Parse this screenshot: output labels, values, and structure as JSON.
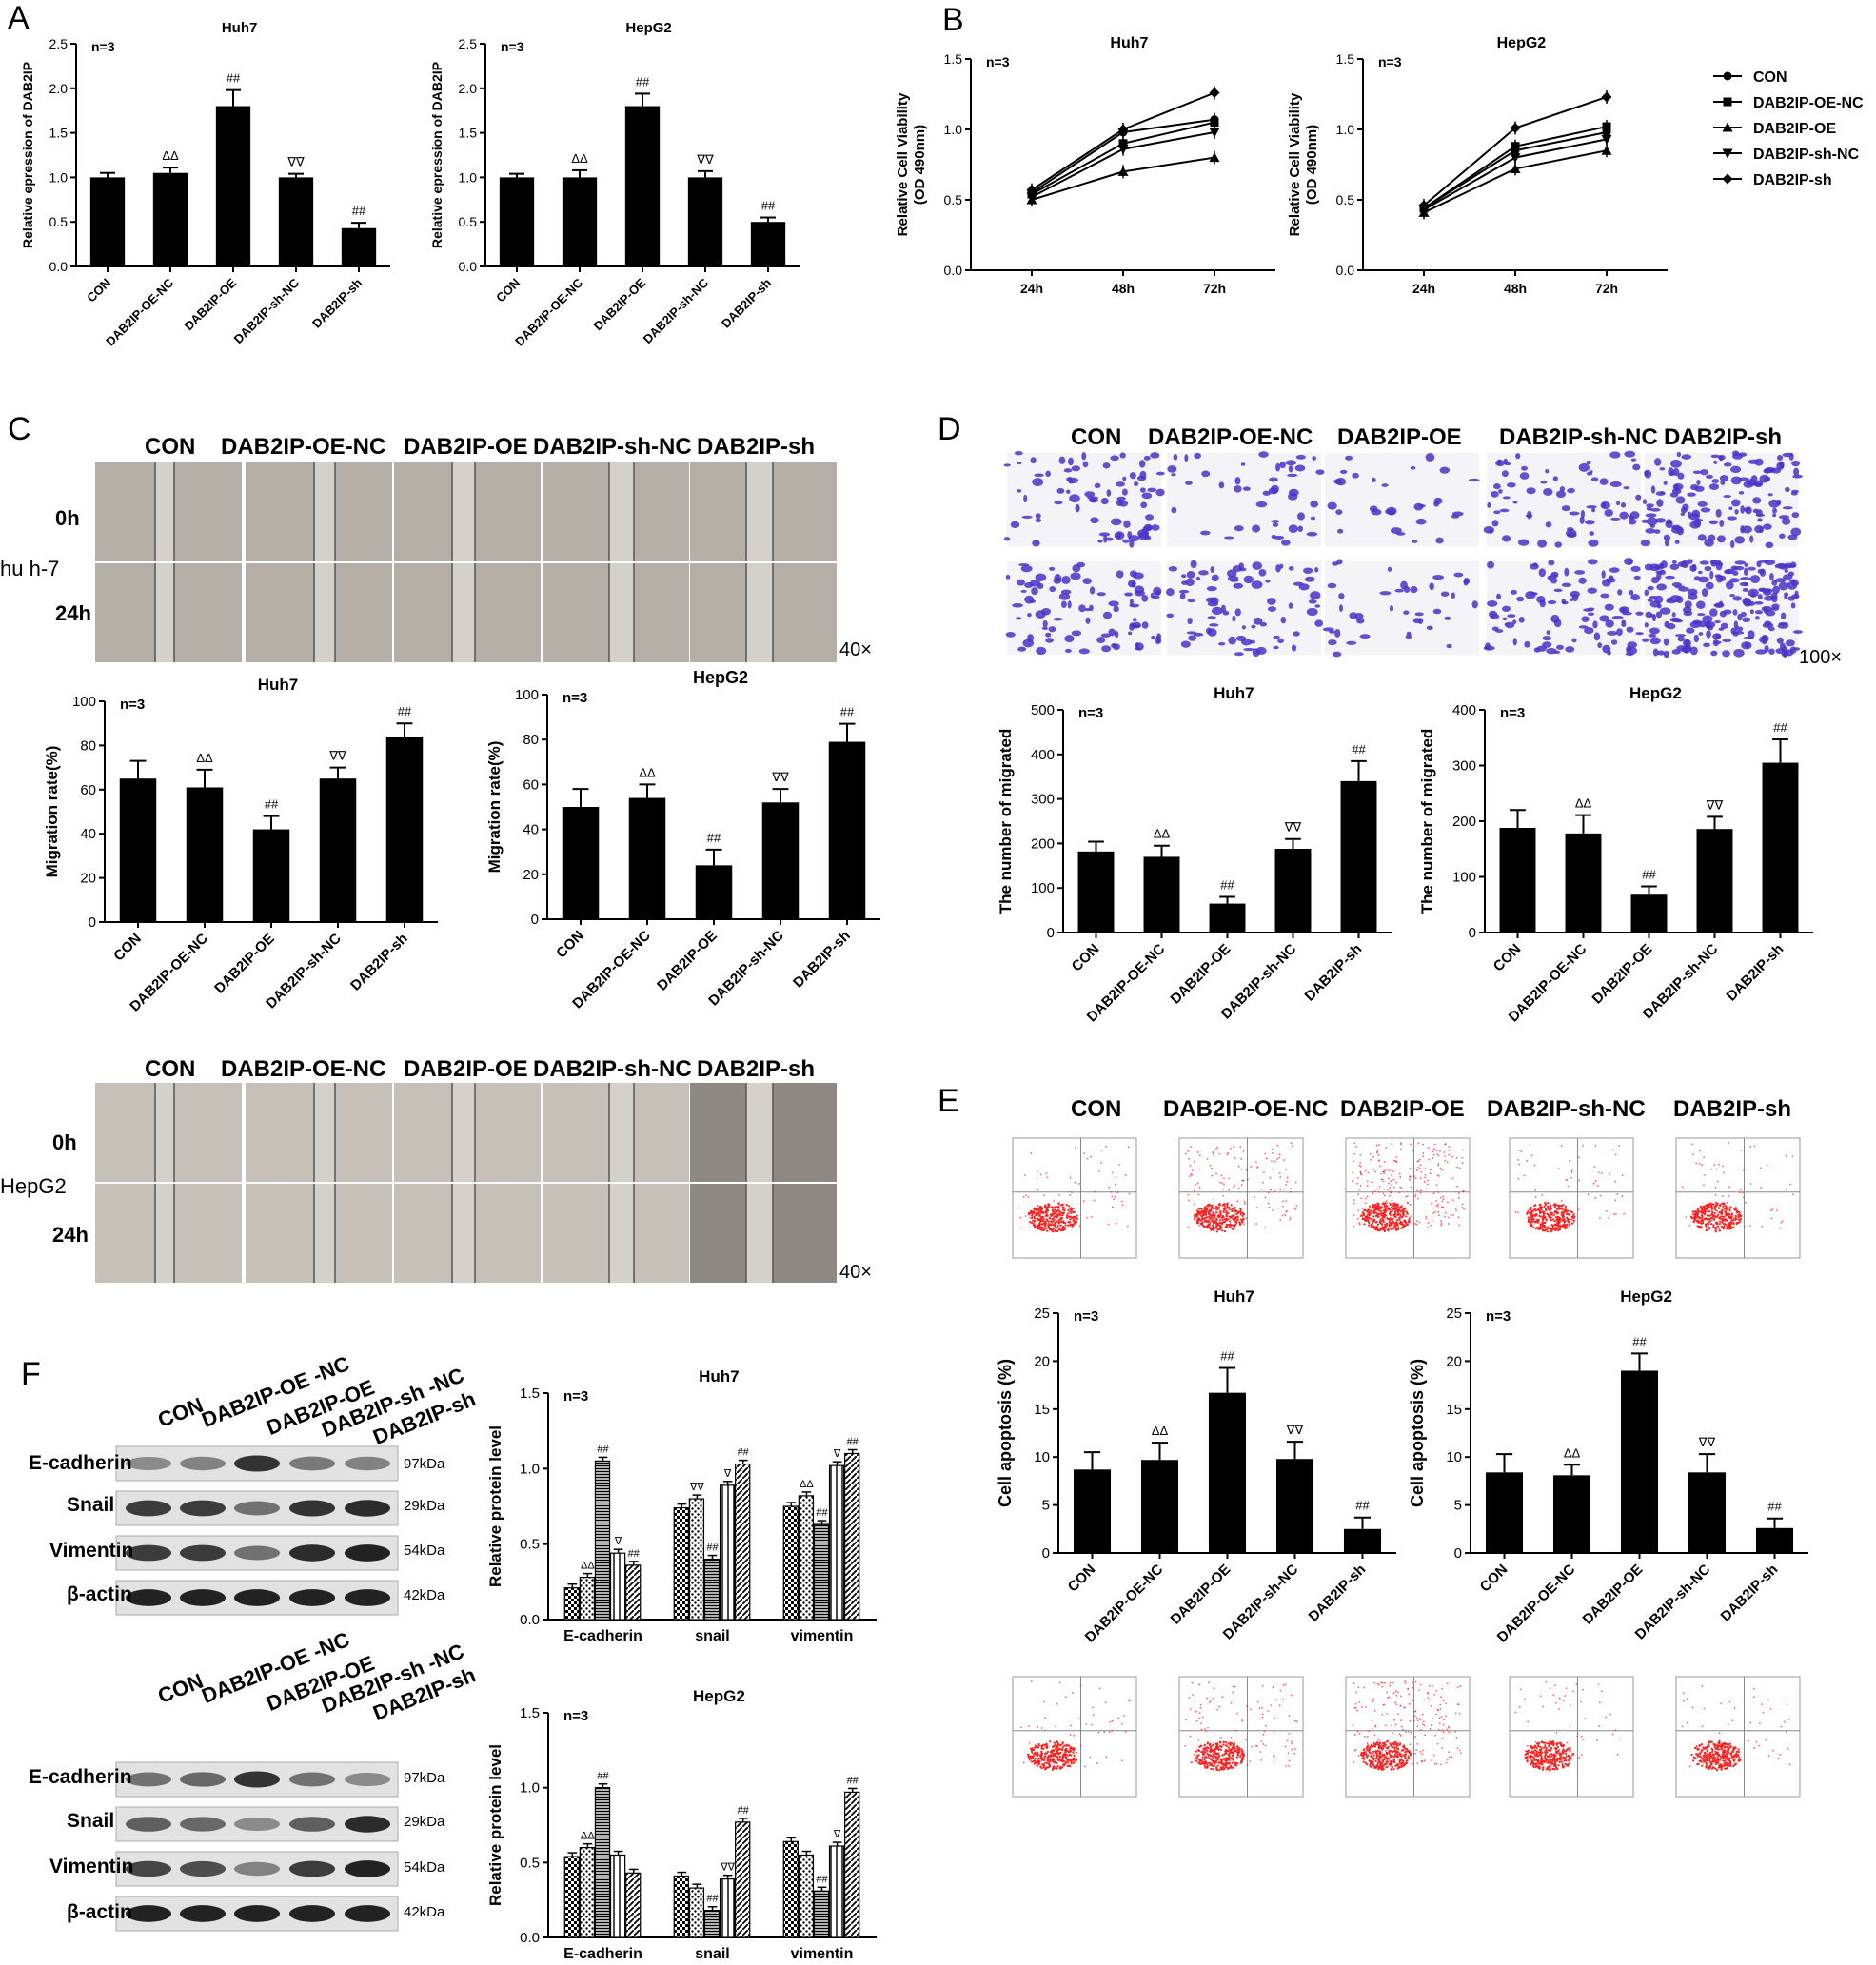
{
  "panels": {
    "A": "A",
    "B": "B",
    "C": "C",
    "D": "D",
    "E": "E",
    "F": "F"
  },
  "groups": [
    "CON",
    "DAB2IP-OE-NC",
    "DAB2IP-OE",
    "DAB2IP-sh-NC",
    "DAB2IP-sh"
  ],
  "groups_wb": [
    "CON",
    "DAB2IP-OE -NC",
    "DAB2IP-OE",
    "DAB2IP-sh -NC",
    "DAB2IP-sh"
  ],
  "panel_C": {
    "row_0h": "0h",
    "row_24h": "24h",
    "cell_huh7": "hu h-7",
    "cell_hepg2": "HepG2",
    "magnification": "40×"
  },
  "panel_D": {
    "magnification": "100×"
  },
  "panel_F": {
    "proteins": [
      "E-cadherin",
      "Snail",
      "Vimentin",
      "β-actin"
    ],
    "sizes": [
      "97kDa",
      "29kDa",
      "54kDa",
      "42kDa"
    ]
  },
  "colors": {
    "bar": "#000000",
    "apoptosis_dots": "#ff2020",
    "crystal_violet": "#4a33c8",
    "wound_bg": "#b5aea6"
  },
  "chart_data": [
    {
      "id": "A_huh7",
      "type": "bar",
      "title": "Huh7",
      "note": "n=3",
      "ylabel": "Relative epression of DAB2IP",
      "ylim": [
        0,
        2.5
      ],
      "yticks": [
        0.0,
        0.5,
        1.0,
        1.5,
        2.0,
        2.5
      ],
      "categories": [
        "CON",
        "DAB2IP-OE-NC",
        "DAB2IP-OE",
        "DAB2IP-sh-NC",
        "DAB2IP-sh"
      ],
      "values": [
        1.0,
        1.05,
        1.8,
        1.0,
        0.43
      ],
      "errors": [
        0.05,
        0.06,
        0.18,
        0.04,
        0.06
      ],
      "annotations": [
        "",
        "ΔΔ",
        "##",
        "∇∇",
        "##"
      ]
    },
    {
      "id": "A_hepg2",
      "type": "bar",
      "title": "HepG2",
      "note": "n=3",
      "ylabel": "Relative epression of DAB2IP",
      "ylim": [
        0,
        2.5
      ],
      "yticks": [
        0.0,
        0.5,
        1.0,
        1.5,
        2.0,
        2.5
      ],
      "categories": [
        "CON",
        "DAB2IP-OE-NC",
        "DAB2IP-OE",
        "DAB2IP-sh-NC",
        "DAB2IP-sh"
      ],
      "values": [
        1.0,
        1.0,
        1.8,
        1.0,
        0.5
      ],
      "errors": [
        0.04,
        0.08,
        0.14,
        0.07,
        0.05
      ],
      "annotations": [
        "",
        "ΔΔ",
        "##",
        "∇∇",
        "##"
      ]
    },
    {
      "id": "B_huh7",
      "type": "line",
      "title": "Huh7",
      "note": "n=3",
      "ylabel": "Relative Cell Viability (OD 490nm)",
      "ylim": [
        0,
        1.5
      ],
      "yticks": [
        0.0,
        0.5,
        1.0,
        1.5
      ],
      "x": [
        "24h",
        "48h",
        "72h"
      ],
      "series": [
        {
          "name": "CON",
          "values": [
            0.55,
            0.98,
            1.07
          ]
        },
        {
          "name": "DAB2IP-OE-NC",
          "values": [
            0.54,
            0.9,
            1.05
          ]
        },
        {
          "name": "DAB2IP-OE",
          "values": [
            0.5,
            0.7,
            0.8
          ]
        },
        {
          "name": "DAB2IP-sh-NC",
          "values": [
            0.52,
            0.86,
            0.98
          ]
        },
        {
          "name": "DAB2IP-sh",
          "values": [
            0.57,
            1.0,
            1.26
          ]
        }
      ]
    },
    {
      "id": "B_hepg2",
      "type": "line",
      "title": "HepG2",
      "note": "n=3",
      "ylabel": "Relative Cell Viability (OD 490nm)",
      "ylim": [
        0,
        1.5
      ],
      "yticks": [
        0.0,
        0.5,
        1.0,
        1.5
      ],
      "x": [
        "24h",
        "48h",
        "72h"
      ],
      "series": [
        {
          "name": "CON",
          "values": [
            0.44,
            0.85,
            0.98
          ]
        },
        {
          "name": "DAB2IP-OE-NC",
          "values": [
            0.44,
            0.88,
            1.02
          ]
        },
        {
          "name": "DAB2IP-OE",
          "values": [
            0.41,
            0.72,
            0.85
          ]
        },
        {
          "name": "DAB2IP-sh-NC",
          "values": [
            0.43,
            0.8,
            0.93
          ]
        },
        {
          "name": "DAB2IP-sh",
          "values": [
            0.46,
            1.01,
            1.23
          ]
        }
      ],
      "legend": [
        "CON",
        "DAB2IP-OE-NC",
        "DAB2IP-OE",
        "DAB2IP-sh-NC",
        "DAB2IP-sh"
      ]
    },
    {
      "id": "C_huh7",
      "type": "bar",
      "title": "Huh7",
      "note": "n=3",
      "ylabel": "Migration rate(%)",
      "ylim": [
        0,
        100
      ],
      "yticks": [
        0,
        20,
        40,
        60,
        80,
        100
      ],
      "categories": [
        "CON",
        "DAB2IP-OE-NC",
        "DAB2IP-OE",
        "DAB2IP-sh-NC",
        "DAB2IP-sh"
      ],
      "values": [
        65,
        61,
        42,
        65,
        84
      ],
      "errors": [
        8,
        8,
        6,
        5,
        6
      ],
      "annotations": [
        "",
        "ΔΔ",
        "##",
        "∇∇",
        "##"
      ]
    },
    {
      "id": "C_hepg2",
      "type": "bar",
      "title": "HepG2",
      "note": "n=3",
      "ylabel": "Migration rate(%)",
      "ylim": [
        0,
        100
      ],
      "yticks": [
        0,
        20,
        40,
        60,
        80,
        100
      ],
      "categories": [
        "CON",
        "DAB2IP-OE-NC",
        "DAB2IP-OE",
        "DAB2IP-sh-NC",
        "DAB2IP-sh"
      ],
      "values": [
        50,
        54,
        24,
        52,
        79
      ],
      "errors": [
        8,
        6,
        7,
        6,
        8
      ],
      "annotations": [
        "",
        "ΔΔ",
        "##",
        "∇∇",
        "##"
      ]
    },
    {
      "id": "D_huh7",
      "type": "bar",
      "title": "Huh7",
      "note": "n=3",
      "ylabel": "The number of migrated",
      "ylim": [
        0,
        500
      ],
      "yticks": [
        0,
        100,
        200,
        300,
        400,
        500
      ],
      "categories": [
        "CON",
        "DAB2IP-OE-NC",
        "DAB2IP-OE",
        "DAB2IP-sh-NC",
        "DAB2IP-sh"
      ],
      "values": [
        182,
        170,
        65,
        188,
        340
      ],
      "errors": [
        22,
        25,
        15,
        22,
        45
      ],
      "annotations": [
        "",
        "ΔΔ",
        "##",
        "∇∇",
        "##"
      ]
    },
    {
      "id": "D_hepg2",
      "type": "bar",
      "title": "HepG2",
      "note": "n=3",
      "ylabel": "The number of migrated",
      "ylim": [
        0,
        400
      ],
      "yticks": [
        0,
        100,
        200,
        300,
        400
      ],
      "categories": [
        "CON",
        "DAB2IP-OE-NC",
        "DAB2IP-OE",
        "DAB2IP-sh-NC",
        "DAB2IP-sh"
      ],
      "values": [
        188,
        178,
        68,
        186,
        305
      ],
      "errors": [
        32,
        33,
        15,
        22,
        42
      ],
      "annotations": [
        "",
        "ΔΔ",
        "##",
        "∇∇",
        "##"
      ]
    },
    {
      "id": "E_huh7",
      "type": "bar",
      "title": "Huh7",
      "note": "n=3",
      "ylabel": "Cell apoptosis (%)",
      "ylim": [
        0,
        25
      ],
      "yticks": [
        0,
        5,
        10,
        15,
        20,
        25
      ],
      "categories": [
        "CON",
        "DAB2IP-OE-NC",
        "DAB2IP-OE",
        "DAB2IP-sh-NC",
        "DAB2IP-sh"
      ],
      "values": [
        8.7,
        9.7,
        16.7,
        9.8,
        2.5
      ],
      "errors": [
        1.8,
        1.8,
        2.6,
        1.8,
        1.2
      ],
      "annotations": [
        "",
        "ΔΔ",
        "##",
        "∇∇",
        "##"
      ]
    },
    {
      "id": "E_hepg2",
      "type": "bar",
      "title": "HepG2",
      "note": "n=3",
      "ylabel": "Cell apoptosis (%)",
      "ylim": [
        0,
        25
      ],
      "yticks": [
        0,
        5,
        10,
        15,
        20,
        25
      ],
      "categories": [
        "CON",
        "DAB2IP-OE-NC",
        "DAB2IP-OE",
        "DAB2IP-sh-NC",
        "DAB2IP-sh"
      ],
      "values": [
        8.4,
        8.1,
        19,
        8.4,
        2.6
      ],
      "errors": [
        1.9,
        1.1,
        1.8,
        1.9,
        1.0
      ],
      "annotations": [
        "",
        "ΔΔ",
        "##",
        "∇∇",
        "##"
      ]
    },
    {
      "id": "F_huh7",
      "type": "bar",
      "title": "Huh7",
      "note": "n=3",
      "ylabel": "Relative protein level",
      "ylim": [
        0,
        1.5
      ],
      "yticks": [
        0.0,
        0.5,
        1.0,
        1.5
      ],
      "categories": [
        "E-cadherin",
        "snail",
        "vimentin"
      ],
      "series": [
        {
          "values": [
            0.21,
            0.74,
            0.75
          ]
        },
        {
          "values": [
            0.28,
            0.8,
            0.82
          ]
        },
        {
          "values": [
            1.05,
            0.4,
            0.63
          ]
        },
        {
          "values": [
            0.44,
            0.89,
            1.02
          ]
        },
        {
          "values": [
            0.36,
            1.03,
            1.1
          ]
        }
      ],
      "annotations": [
        [
          "",
          "ΔΔ",
          "##",
          "∇",
          "##"
        ],
        [
          "",
          "∇∇",
          "##",
          "∇",
          "##"
        ],
        [
          "",
          "ΔΔ",
          "##",
          "∇",
          "##"
        ]
      ]
    },
    {
      "id": "F_hepg2",
      "type": "bar",
      "title": "HepG2",
      "note": "n=3",
      "ylabel": "Relative protein level",
      "ylim": [
        0,
        1.5
      ],
      "yticks": [
        0.0,
        0.5,
        1.0,
        1.5
      ],
      "categories": [
        "E-cadherin",
        "snail",
        "vimentin"
      ],
      "series": [
        {
          "values": [
            0.54,
            0.41,
            0.64
          ]
        },
        {
          "values": [
            0.6,
            0.33,
            0.55
          ]
        },
        {
          "values": [
            1.0,
            0.18,
            0.31
          ]
        },
        {
          "values": [
            0.55,
            0.39,
            0.61
          ]
        },
        {
          "values": [
            0.43,
            0.77,
            0.97
          ]
        }
      ],
      "annotations": [
        [
          "",
          "ΔΔ",
          "##",
          "",
          ""
        ],
        [
          "",
          "",
          "##",
          "∇∇",
          "##"
        ],
        [
          "",
          "",
          "##",
          "∇",
          "##"
        ]
      ]
    }
  ]
}
